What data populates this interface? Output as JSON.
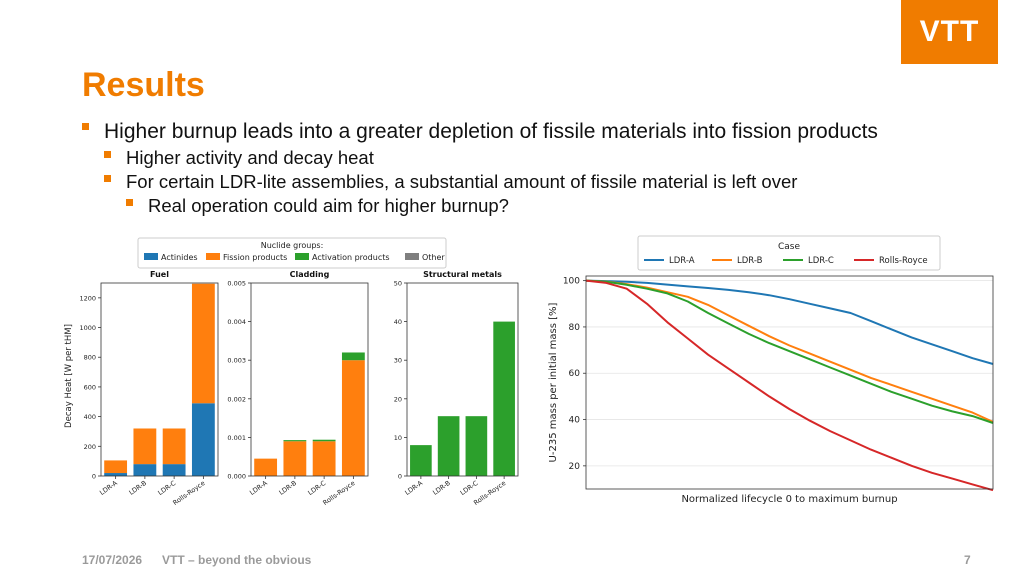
{
  "logo": {
    "text": "VTT",
    "color": "#f07c00"
  },
  "slide": {
    "title": "Results",
    "bullets": [
      "Higher burnup leads into a greater depletion of fissile materials into fission products",
      "Higher activity and decay heat",
      "For certain LDR-lite assemblies, a substantial amount of fissile material is left over",
      "Real operation could aim for higher burnup?"
    ]
  },
  "footer": {
    "date": "17/07/2026",
    "tagline": "VTT – beyond the obvious",
    "page": "7"
  },
  "chart_data": [
    {
      "type": "bar",
      "stacked": true,
      "legend_title": "Nuclide groups:",
      "legend_placement": "top",
      "legend": [
        {
          "name": "Actinides",
          "color": "#1f77b4"
        },
        {
          "name": "Fission products",
          "color": "#ff7f0e"
        },
        {
          "name": "Activation products",
          "color": "#2ca02c"
        },
        {
          "name": "Other",
          "color": "#7f7f7f"
        }
      ],
      "ylabel": "Decay Heat [W per tHM]",
      "categories": [
        "LDR-A",
        "LDR-B",
        "LDR-C",
        "Rolls-Royce"
      ],
      "panels": [
        {
          "title": "Fuel",
          "ylim": [
            0,
            1300
          ],
          "yticks": [
            0,
            200,
            400,
            600,
            800,
            1000,
            1200
          ],
          "series": [
            {
              "name": "Actinides",
              "values": [
                20,
                80,
                80,
                490
              ]
            },
            {
              "name": "Fission products",
              "values": [
                85,
                240,
                240,
                805
              ]
            },
            {
              "name": "Activation products",
              "values": [
                0,
                0,
                0,
                0
              ]
            }
          ]
        },
        {
          "title": "Cladding",
          "ylim": [
            0,
            0.005
          ],
          "yticks": [
            "0.000",
            "0.001",
            "0.002",
            "0.003",
            "0.004",
            "0.005"
          ],
          "series": [
            {
              "name": "Actinides",
              "values": [
                0,
                0,
                0,
                0
              ]
            },
            {
              "name": "Fission products",
              "values": [
                0.00045,
                0.0009,
                0.0009,
                0.003
              ]
            },
            {
              "name": "Activation products",
              "values": [
                0,
                3e-05,
                4e-05,
                0.0002
              ]
            }
          ]
        },
        {
          "title": "Structural metals",
          "ylim": [
            0,
            50
          ],
          "yticks": [
            0,
            10,
            20,
            30,
            40,
            50
          ],
          "series": [
            {
              "name": "Actinides",
              "values": [
                0,
                0,
                0,
                0
              ]
            },
            {
              "name": "Fission products",
              "values": [
                0,
                0,
                0,
                0
              ]
            },
            {
              "name": "Activation products",
              "values": [
                8,
                15.5,
                15.5,
                40
              ]
            }
          ]
        }
      ]
    },
    {
      "type": "line",
      "legend_title": "Case",
      "legend_placement": "top",
      "xlabel": "Normalized lifecycle 0 to maximum burnup",
      "ylabel": "U-235 mass per initial mass [%]",
      "ylim": [
        10,
        102
      ],
      "yticks": [
        20,
        40,
        60,
        80,
        100
      ],
      "xlim": [
        0,
        1
      ],
      "grid": true,
      "x": [
        0,
        0.05,
        0.1,
        0.15,
        0.2,
        0.25,
        0.3,
        0.35,
        0.4,
        0.45,
        0.5,
        0.55,
        0.6,
        0.65,
        0.7,
        0.75,
        0.8,
        0.85,
        0.9,
        0.95,
        1.0
      ],
      "series": [
        {
          "name": "LDR-A",
          "color": "#1f77b4",
          "values": [
            100,
            99.8,
            99.5,
            99,
            98.3,
            97.5,
            96.8,
            96,
            95,
            93.7,
            92,
            90,
            88,
            86,
            82.5,
            79,
            75.5,
            72.5,
            69.5,
            66.5,
            64
          ]
        },
        {
          "name": "LDR-B",
          "color": "#ff7f0e",
          "values": [
            100,
            99.6,
            98.5,
            97,
            95,
            93,
            89.5,
            85,
            80.5,
            76,
            72,
            68.5,
            65,
            61.5,
            58,
            55,
            52,
            49,
            46,
            43,
            39
          ]
        },
        {
          "name": "LDR-C",
          "color": "#2ca02c",
          "values": [
            100,
            99.5,
            98.2,
            96.5,
            94.5,
            91,
            86,
            81.5,
            77,
            73,
            69.5,
            66,
            62.5,
            59,
            55.5,
            52,
            49,
            46,
            43.5,
            41.5,
            38.5
          ]
        },
        {
          "name": "Rolls-Royce",
          "color": "#d62728",
          "values": [
            100,
            99,
            96.5,
            90,
            82,
            75,
            68,
            62,
            56,
            50,
            44.5,
            39.5,
            35,
            31,
            27,
            23.5,
            20,
            17,
            14.5,
            12,
            9.5
          ]
        }
      ]
    }
  ]
}
